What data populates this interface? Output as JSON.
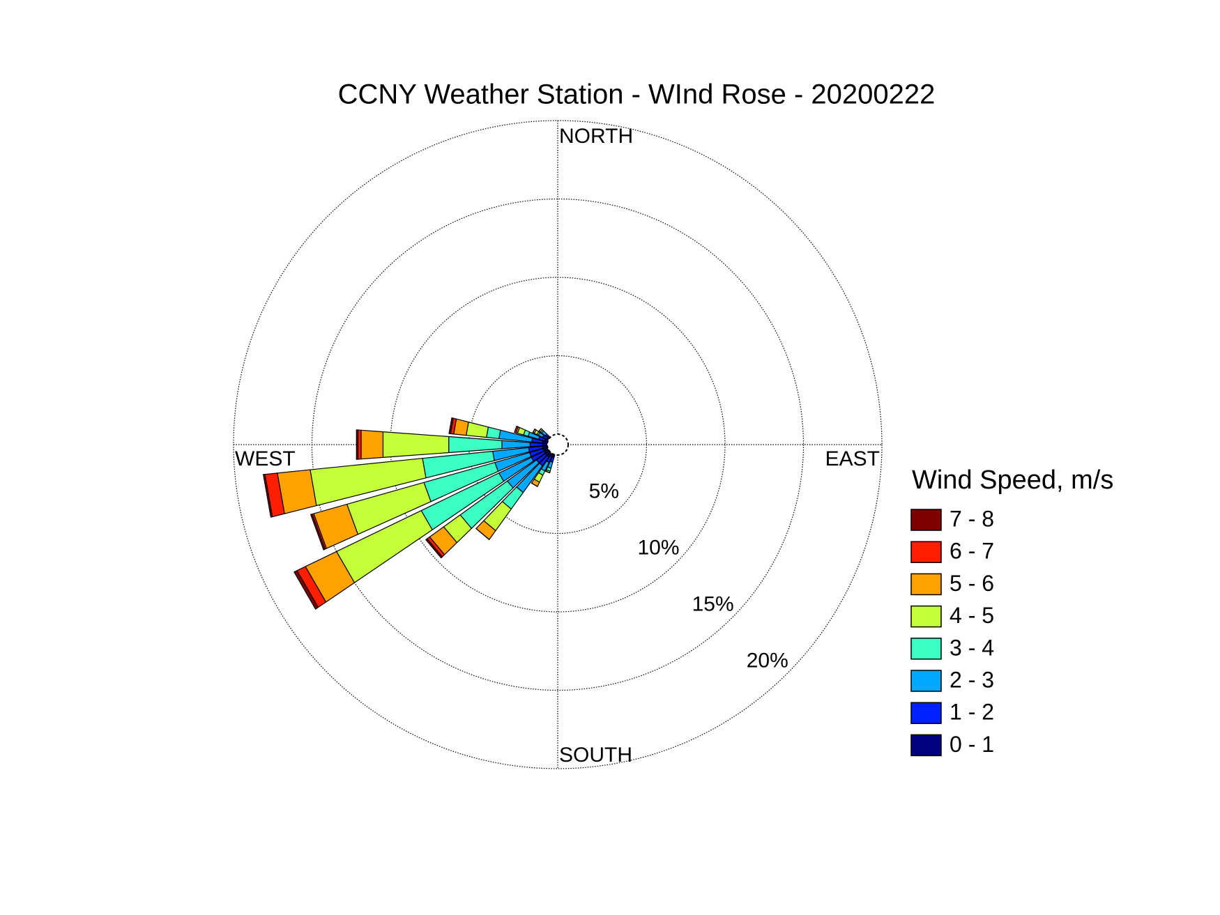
{
  "chart_data": {
    "type": "windrose",
    "title": "CCNY Weather Station - WInd Rose - 20200222",
    "direction_labels": [
      "NORTH",
      "EAST",
      "SOUTH",
      "WEST"
    ],
    "x": [
      200,
      210,
      220,
      230,
      240,
      250,
      260,
      270,
      280,
      290,
      300,
      310
    ],
    "rlim": [
      0,
      20
    ],
    "rticks": [
      {
        "value": 5,
        "label": "5%"
      },
      {
        "value": 10,
        "label": "10%"
      },
      {
        "value": 15,
        "label": "15%"
      },
      {
        "value": 20,
        "label": "20%"
      }
    ],
    "legend_title": "Wind Speed, m/s",
    "series": [
      {
        "name": "0 - 1",
        "color": "#000080",
        "values": [
          0.2,
          0.2,
          0.3,
          0.3,
          0.3,
          0.3,
          0.3,
          0.3,
          0.3,
          0.2,
          0.1,
          0.1
        ]
      },
      {
        "name": "1 - 2",
        "color": "#0020ff",
        "values": [
          0.3,
          0.4,
          0.7,
          0.7,
          0.9,
          0.9,
          0.9,
          0.8,
          0.7,
          0.4,
          0.3,
          0.2
        ]
      },
      {
        "name": "2 - 3",
        "color": "#00a8ff",
        "values": [
          0.4,
          0.6,
          2.1,
          2.3,
          2.3,
          2.3,
          2.3,
          1.8,
          2.1,
          0.7,
          0.3,
          0.3
        ]
      },
      {
        "name": "3 - 4",
        "color": "#3cffc3",
        "values": [
          0.2,
          0.3,
          1.3,
          3.7,
          5.5,
          4.7,
          4.5,
          3.4,
          0.8,
          0.3,
          0.1,
          0.1
        ]
      },
      {
        "name": "4 - 5",
        "color": "#c4ff3a",
        "values": [
          0.1,
          0.5,
          1.7,
          1.3,
          6.0,
          5.1,
          7.2,
          4.2,
          1.3,
          0.4,
          0.2,
          0.1
        ]
      },
      {
        "name": "5 - 6",
        "color": "#ffa200",
        "values": [
          0,
          0.3,
          0.7,
          1.1,
          2.2,
          2.2,
          2.1,
          1.4,
          0.8,
          0.1,
          0.1,
          0
        ]
      },
      {
        "name": "6 - 7",
        "color": "#ff1e00",
        "values": [
          0,
          0,
          0,
          0.2,
          0.6,
          0.1,
          0.8,
          0.2,
          0.2,
          0.1,
          0,
          0
        ]
      },
      {
        "name": "7 - 8",
        "color": "#800000",
        "values": [
          0,
          0,
          0,
          0.1,
          0.2,
          0.1,
          0.1,
          0.1,
          0.1,
          0,
          0,
          0
        ]
      }
    ],
    "grid": true
  }
}
